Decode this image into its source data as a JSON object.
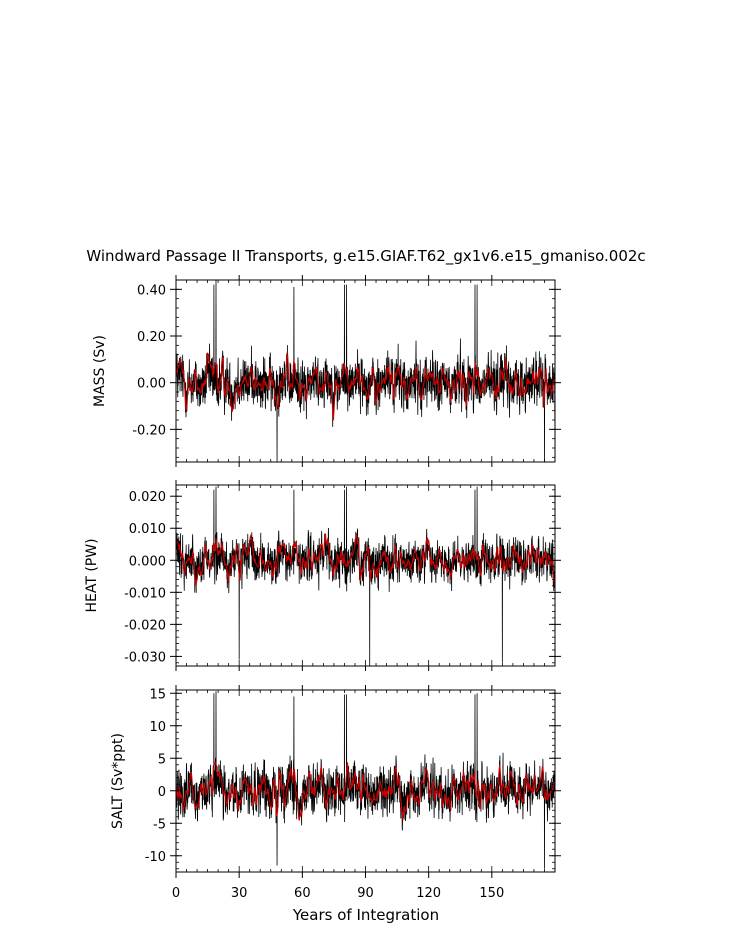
{
  "title": "Windward Passage II Transports, g.e15.GIAF.T62_gx1v6.e15_gmaniso.002c",
  "xlabel": "Years of Integration",
  "colors": {
    "raw": "#000000",
    "smoothed": "#cc0000",
    "frame": "#000000"
  },
  "chart_data": [
    {
      "type": "line",
      "ylabel": "MASS (Sv)",
      "xlim": [
        0,
        180
      ],
      "ylim": [
        -0.34,
        0.44
      ],
      "yticks": [
        -0.2,
        0.0,
        0.2,
        0.4
      ],
      "ytick_labels": [
        "-0.20",
        "0.00",
        "0.20",
        "0.40"
      ],
      "series": [
        {
          "values": {
            "amp": 0.09,
            "smooth_amp": 0.035,
            "spikes_hi": [
              [
                18,
                0.42
              ],
              [
                19,
                0.44
              ],
              [
                56,
                0.41
              ],
              [
                80,
                0.42
              ],
              [
                81,
                0.42
              ],
              [
                142,
                0.42
              ],
              [
                143,
                0.42
              ]
            ],
            "spikes_lo": [
              [
                48,
                -0.34
              ],
              [
                175,
                -0.34
              ]
            ]
          }
        }
      ]
    },
    {
      "type": "line",
      "ylabel": "HEAT (PW)",
      "xlim": [
        0,
        180
      ],
      "ylim": [
        -0.033,
        0.0235
      ],
      "yticks": [
        -0.03,
        -0.02,
        -0.01,
        0.0,
        0.01,
        0.02
      ],
      "ytick_labels": [
        "-0.030",
        "-0.020",
        "-0.010",
        "0.000",
        "0.010",
        "0.020"
      ],
      "series": [
        {
          "values": {
            "amp": 0.0055,
            "smooth_amp": 0.0025,
            "spikes_hi": [
              [
                18,
                0.022
              ],
              [
                19,
                0.023
              ],
              [
                56,
                0.022
              ],
              [
                80,
                0.022
              ],
              [
                81,
                0.023
              ],
              [
                142,
                0.022
              ],
              [
                143,
                0.023
              ]
            ],
            "spikes_lo": [
              [
                30,
                -0.031
              ],
              [
                92,
                -0.033
              ],
              [
                155,
                -0.032
              ]
            ]
          }
        }
      ]
    },
    {
      "type": "line",
      "ylabel": "SALT (Sv*ppt)",
      "xlim": [
        0,
        180
      ],
      "ylim": [
        -12.5,
        15.5
      ],
      "yticks": [
        -10,
        -5,
        0,
        5,
        10,
        15
      ],
      "ytick_labels": [
        "-10",
        "-5",
        "0",
        "5",
        "10",
        "15"
      ],
      "xticks": [
        0,
        30,
        60,
        90,
        120,
        150
      ],
      "xtick_labels": [
        "0",
        "30",
        "60",
        "90",
        "120",
        "150"
      ],
      "series": [
        {
          "values": {
            "amp": 3.0,
            "smooth_amp": 1.2,
            "spikes_hi": [
              [
                18,
                15
              ],
              [
                19,
                15.3
              ],
              [
                56,
                14.5
              ],
              [
                80,
                14.8
              ],
              [
                81,
                14.8
              ],
              [
                142,
                14.8
              ],
              [
                143,
                15
              ]
            ],
            "spikes_lo": [
              [
                48,
                -11.5
              ],
              [
                175,
                -12
              ]
            ]
          }
        }
      ]
    }
  ]
}
